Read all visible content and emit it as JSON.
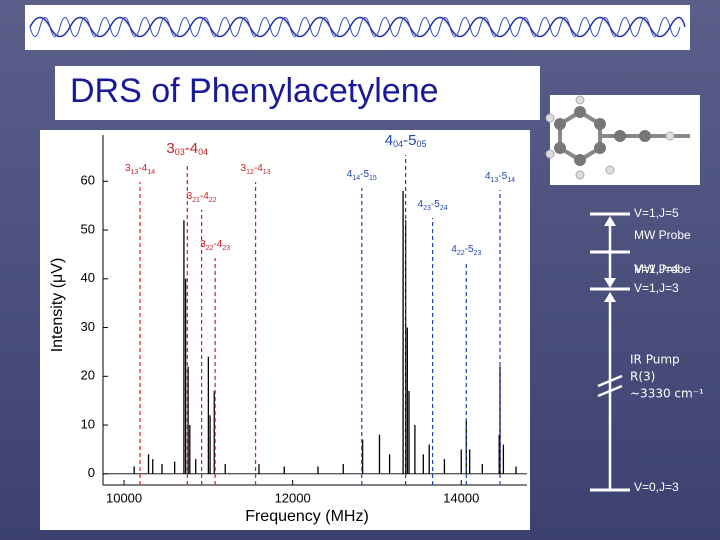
{
  "title": "DRS of Phenylacetylene",
  "chart_data": {
    "type": "stem",
    "xlabel": "Frequency (MHz)",
    "ylabel": "Intensity (μV)",
    "xlim": [
      9750,
      14780
    ],
    "ylim": [
      -2.3,
      69.5
    ],
    "xticks": [
      10000,
      12000,
      14000
    ],
    "yticks": [
      0,
      10,
      20,
      30,
      40,
      50,
      60
    ],
    "color": "#000000",
    "x": [
      10120,
      10290,
      10340,
      10450,
      10600,
      10710,
      10730,
      10760,
      10780,
      10850,
      11000,
      11020,
      11070,
      11200,
      11600,
      11900,
      12300,
      12600,
      12830,
      13030,
      13150,
      13310,
      13340,
      13360,
      13380,
      13450,
      13550,
      13620,
      13800,
      14000,
      14060,
      14100,
      14250,
      14450,
      14460,
      14500,
      14650
    ],
    "values": [
      1.5,
      4,
      3,
      2,
      2.5,
      52,
      40,
      22,
      10,
      3,
      24,
      12,
      17,
      2,
      2,
      1.5,
      1.5,
      2,
      7,
      8,
      4,
      58,
      52,
      30,
      17,
      10,
      4,
      6,
      3,
      5,
      11,
      5,
      2,
      8,
      22,
      6,
      1.5
    ],
    "annotations": [
      {
        "label": [
          "3",
          "13",
          "-4",
          "14"
        ],
        "x": 10190,
        "color": "#cc2222"
      },
      {
        "label": [
          "3",
          "03",
          "-4",
          "04"
        ],
        "x": 10750,
        "color": "#cc2222"
      },
      {
        "label": [
          "3",
          "21",
          "-4",
          "22"
        ],
        "x": 10920,
        "color": "#cc2222"
      },
      {
        "label": [
          "3",
          "22",
          "-4",
          "23"
        ],
        "x": 11080,
        "color": "#cc2222"
      },
      {
        "label": [
          "3",
          "12",
          "-4",
          "13"
        ],
        "x": 11560,
        "color": "#cc2222"
      },
      {
        "label": [
          "4",
          "04",
          "-5",
          "05"
        ],
        "x": 13340,
        "color": "#2244aa"
      },
      {
        "label": [
          "4",
          "14",
          "-5",
          "15"
        ],
        "x": 12820,
        "color": "#2244aa"
      },
      {
        "label": [
          "4",
          "23",
          "-5",
          "24"
        ],
        "x": 13660,
        "color": "#2244aa"
      },
      {
        "label": [
          "4",
          "22",
          "-5",
          "23"
        ],
        "x": 14060,
        "color": "#2244aa"
      },
      {
        "label": [
          "4",
          "13",
          "-5",
          "14"
        ],
        "x": 14460,
        "color": "#2244aa"
      }
    ]
  },
  "levels": [
    {
      "label": "V=1,J=5"
    },
    {
      "label": "V=1,J=4"
    },
    {
      "label": "V=1,J=3"
    },
    {
      "label": "V=0,J=3"
    }
  ],
  "probe_labels": [
    "MW Probe",
    "MW Probe"
  ],
  "pump_labels": [
    "IR Pump",
    "R(3)",
    "~3330 cm⁻¹"
  ]
}
